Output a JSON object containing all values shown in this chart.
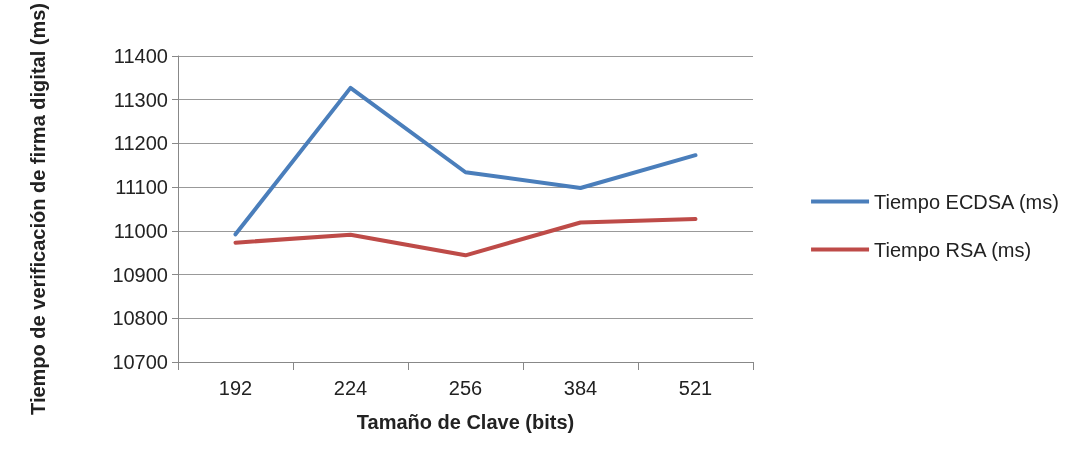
{
  "chart_data": {
    "type": "line",
    "xlabel": "Tamaño de Clave (bits)",
    "ylabel": "Tiempo de verificación de firma digital (ms)",
    "categories": [
      "192",
      "224",
      "256",
      "384",
      "521"
    ],
    "series": [
      {
        "name": "Tiempo ECDSA (ms)",
        "color": "#4a7ebb",
        "values": [
          10992,
          11327,
          11134,
          11098,
          11173
        ]
      },
      {
        "name": "Tiempo RSA (ms)",
        "color": "#be4b48",
        "values": [
          10973,
          10991,
          10944,
          11019,
          11027
        ]
      }
    ],
    "ylim": [
      10700,
      11400
    ],
    "yticks": [
      10700,
      10800,
      10900,
      11000,
      11100,
      11200,
      11300,
      11400
    ],
    "grid": "y",
    "legend": "right",
    "marker": "none",
    "line_style": "solid"
  }
}
